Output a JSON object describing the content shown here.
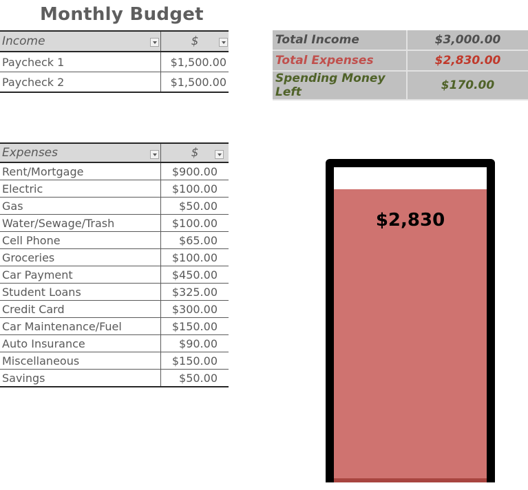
{
  "title": "Monthly Budget",
  "income": {
    "header_label": "Income",
    "header_amount": "$",
    "rows": [
      {
        "label": "Paycheck 1",
        "amount": "$1,500.00"
      },
      {
        "label": "Paycheck 2",
        "amount": "$1,500.00"
      }
    ]
  },
  "expenses": {
    "header_label": "Expenses",
    "header_amount": "$",
    "rows": [
      {
        "label": "Rent/Mortgage",
        "amount": "$900.00"
      },
      {
        "label": "Electric",
        "amount": "$100.00"
      },
      {
        "label": "Gas",
        "amount": "$50.00"
      },
      {
        "label": "Water/Sewage/Trash",
        "amount": "$100.00"
      },
      {
        "label": "Cell Phone",
        "amount": "$65.00"
      },
      {
        "label": "Groceries",
        "amount": "$100.00"
      },
      {
        "label": "Car Payment",
        "amount": "$450.00"
      },
      {
        "label": "Student Loans",
        "amount": "$325.00"
      },
      {
        "label": "Credit Card",
        "amount": "$300.00"
      },
      {
        "label": "Car Maintenance/Fuel",
        "amount": "$150.00"
      },
      {
        "label": "Auto Insurance",
        "amount": "$90.00"
      },
      {
        "label": "Miscellaneous",
        "amount": "$150.00"
      },
      {
        "label": "Savings",
        "amount": "$50.00"
      }
    ]
  },
  "summary": {
    "total_income_label": "Total Income",
    "total_income_value": "$3,000.00",
    "total_expenses_label": "Total Expenses",
    "total_expenses_value": "$2,830.00",
    "spending_left_label": "Spending Money Left",
    "spending_left_value": "$170.00"
  },
  "thermometer": {
    "label": "$2,830",
    "fill_fraction": 0.943,
    "fill_color": "#cf7370"
  }
}
